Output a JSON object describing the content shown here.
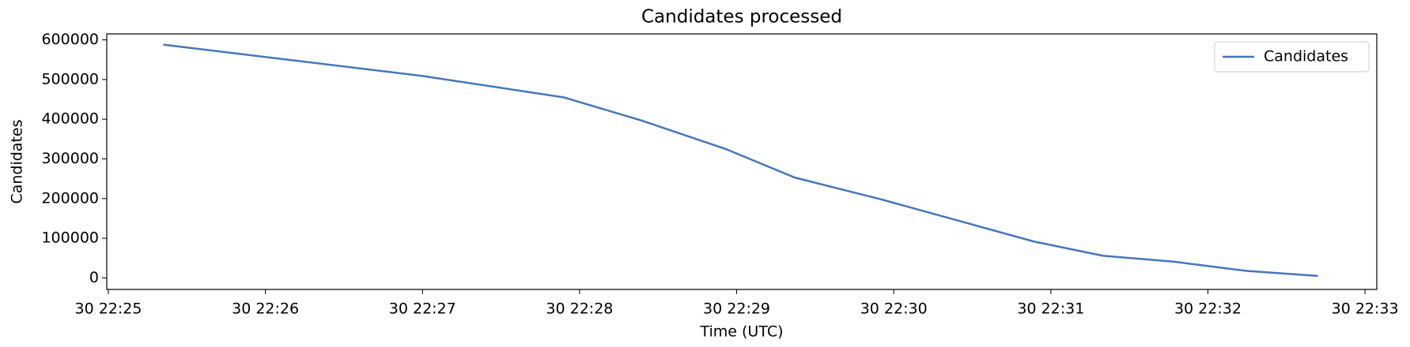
{
  "chart_data": {
    "type": "line",
    "title": "Candidates processed",
    "xlabel": "Time (UTC)",
    "ylabel": "Candidates",
    "x": [
      25.35,
      27.0,
      27.9,
      28.4,
      28.93,
      29.37,
      29.92,
      30.45,
      30.89,
      31.33,
      31.78,
      32.24,
      32.7
    ],
    "series": [
      {
        "name": "Candidates",
        "color": "#4477bb",
        "values": [
          588000,
          509000,
          455000,
          396000,
          325000,
          253000,
          198000,
          140000,
          92000,
          56000,
          41000,
          18000,
          5000
        ]
      }
    ],
    "xlim": [
      24.99,
      33.075
    ],
    "xticks": [
      {
        "value": 25,
        "label": "30 22:25"
      },
      {
        "value": 26,
        "label": "30 22:26"
      },
      {
        "value": 27,
        "label": "30 22:27"
      },
      {
        "value": 28,
        "label": "30 22:28"
      },
      {
        "value": 29,
        "label": "30 22:29"
      },
      {
        "value": 30,
        "label": "30 22:30"
      },
      {
        "value": 31,
        "label": "30 22:31"
      },
      {
        "value": 32,
        "label": "30 22:32"
      },
      {
        "value": 33,
        "label": "30 22:33"
      }
    ],
    "ylim": [
      -29000,
      615000
    ],
    "yticks": [
      0,
      100000,
      200000,
      300000,
      400000,
      500000,
      600000
    ],
    "legend": "upper-right",
    "grid": false
  }
}
